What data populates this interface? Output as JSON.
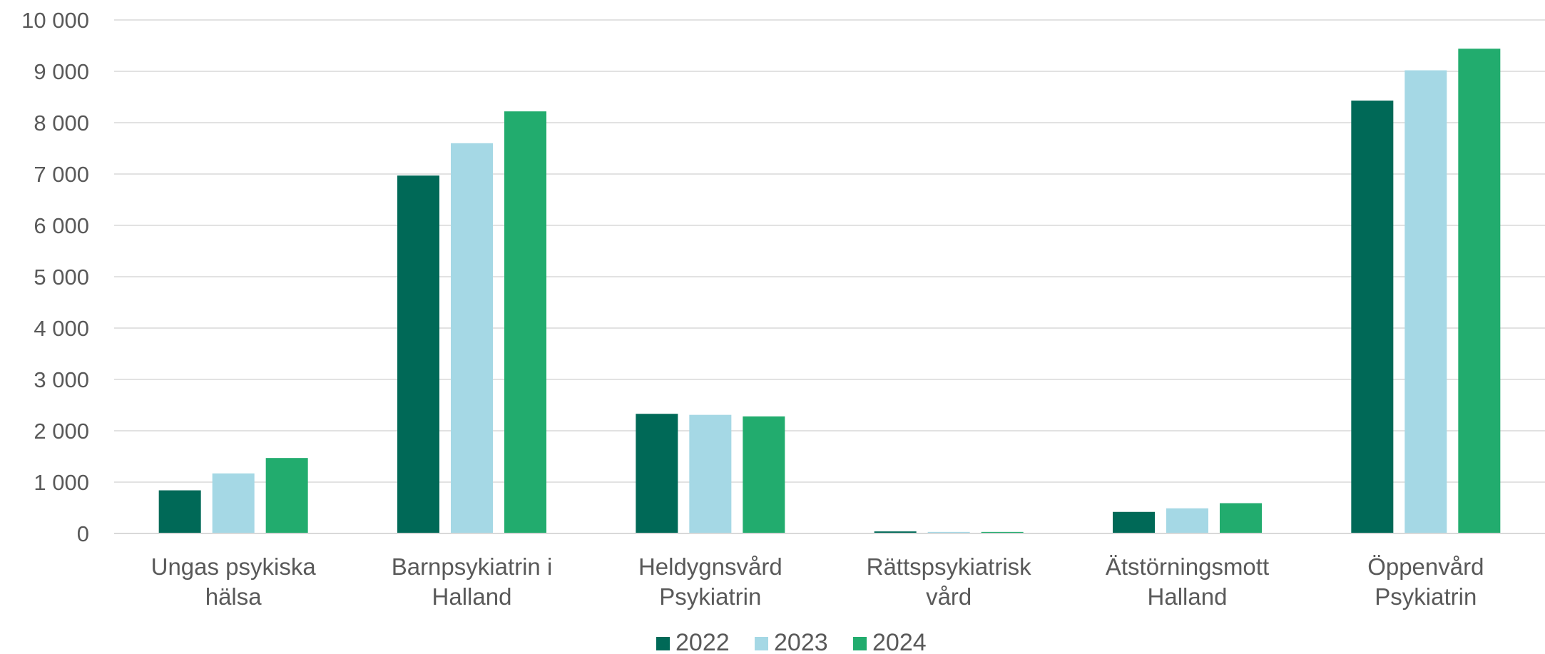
{
  "chart_data": {
    "type": "bar",
    "title": "",
    "xlabel": "",
    "ylabel": "",
    "ylim": [
      0,
      10000
    ],
    "yticks": [
      0,
      1000,
      2000,
      3000,
      4000,
      5000,
      6000,
      7000,
      8000,
      9000,
      10000
    ],
    "ytick_labels": [
      "0",
      "1 000",
      "2 000",
      "3 000",
      "4 000",
      "5 000",
      "6 000",
      "7 000",
      "8 000",
      "9 000",
      "10 000"
    ],
    "grid": "horizontal",
    "legend_position": "bottom",
    "categories": [
      [
        "Ungas psykiska",
        "hälsa"
      ],
      [
        "Barnpsykiatrin i",
        "Halland"
      ],
      [
        "Heldygnsvård",
        "Psykiatrin"
      ],
      [
        "Rättspsykiatrisk",
        "vård"
      ],
      [
        "Ätstörningsmott",
        "Halland"
      ],
      [
        "Öppenvård",
        "Psykiatrin"
      ]
    ],
    "series": [
      {
        "name": "2022",
        "color": "#006957",
        "values": [
          840,
          6970,
          2330,
          40,
          420,
          8430
        ]
      },
      {
        "name": "2023",
        "color": "#a5d8e5",
        "values": [
          1170,
          7600,
          2310,
          30,
          490,
          9020
        ]
      },
      {
        "name": "2024",
        "color": "#22ac6e",
        "values": [
          1470,
          8220,
          2280,
          30,
          590,
          9440
        ]
      }
    ]
  }
}
